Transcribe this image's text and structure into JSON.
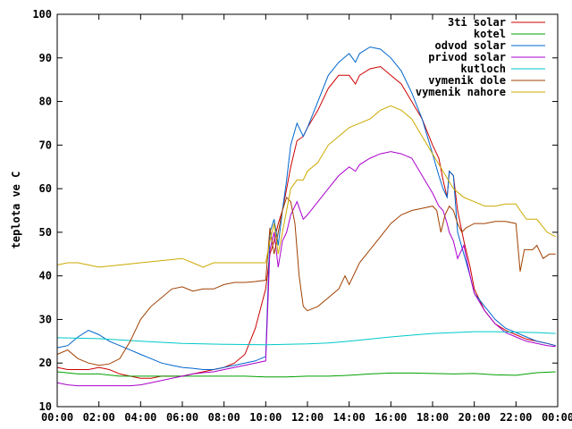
{
  "chart_data": {
    "type": "line",
    "title": "",
    "xlabel": "",
    "ylabel": "teplota ve C",
    "ylim": [
      10,
      100
    ],
    "xlim": [
      0,
      24
    ],
    "yticks": [
      10,
      20,
      30,
      40,
      50,
      60,
      70,
      80,
      90,
      100
    ],
    "xticks": [
      {
        "v": 0,
        "label": "00:00"
      },
      {
        "v": 2,
        "label": "02:00"
      },
      {
        "v": 4,
        "label": "04:00"
      },
      {
        "v": 6,
        "label": "06:00"
      },
      {
        "v": 8,
        "label": "08:00"
      },
      {
        "v": 10,
        "label": "10:00"
      },
      {
        "v": 12,
        "label": "12:00"
      },
      {
        "v": 14,
        "label": "14:00"
      },
      {
        "v": 16,
        "label": "16:00"
      },
      {
        "v": 18,
        "label": "18:00"
      },
      {
        "v": 20,
        "label": "20:00"
      },
      {
        "v": 22,
        "label": "22:00"
      },
      {
        "v": 24,
        "label": "00:00"
      }
    ],
    "legend_position": "top-right",
    "series": [
      {
        "name": "3ti solar",
        "color": "#cc0000",
        "x": [
          0,
          0.5,
          1,
          1.5,
          2,
          2.5,
          3,
          3.5,
          4,
          4.5,
          5,
          5.5,
          6,
          6.5,
          7,
          7.5,
          8,
          8.5,
          9,
          9.5,
          10,
          10.2,
          10.4,
          10.6,
          10.8,
          11,
          11.2,
          11.5,
          11.8,
          12,
          12.5,
          13,
          13.5,
          14,
          14.3,
          14.5,
          15,
          15.5,
          16,
          16.5,
          17,
          17.5,
          18,
          18.3,
          18.5,
          18.7,
          18.8,
          19,
          19.2,
          19.5,
          19.8,
          20,
          20.5,
          21,
          21.5,
          22,
          22.5,
          23,
          23.5,
          23.9
        ],
        "values": [
          19,
          18.5,
          18.5,
          18.5,
          19,
          18.5,
          17.5,
          17,
          16.5,
          16.5,
          17,
          17,
          17,
          17.5,
          18,
          18.5,
          19,
          20,
          22,
          28,
          37,
          45,
          48,
          52,
          55,
          60,
          65,
          71,
          72,
          74,
          78,
          83,
          86,
          86,
          84,
          86,
          87.5,
          88,
          86,
          84,
          80,
          76,
          70,
          67,
          62,
          58,
          64,
          63,
          55,
          48,
          42,
          37,
          32,
          29,
          27.5,
          26.5,
          25.5,
          25,
          24.5,
          24
        ]
      },
      {
        "name": "kotel",
        "color": "#00a000",
        "x": [
          0,
          1,
          2,
          3,
          4,
          5,
          6,
          7,
          8,
          9,
          10,
          11,
          12,
          13,
          14,
          15,
          16,
          17,
          18,
          19,
          20,
          21,
          22,
          23,
          23.9
        ],
        "values": [
          18,
          17.5,
          17.5,
          17,
          17,
          17,
          17,
          17,
          17,
          17,
          16.8,
          16.8,
          17,
          17,
          17.2,
          17.5,
          17.7,
          17.7,
          17.6,
          17.5,
          17.6,
          17.3,
          17.2,
          17.8,
          18
        ]
      },
      {
        "name": "odvod solar",
        "color": "#0066cc",
        "x": [
          0,
          0.5,
          1,
          1.5,
          2,
          2.5,
          3,
          3.5,
          4,
          4.5,
          5,
          5.5,
          6,
          6.5,
          7,
          7.5,
          8,
          8.5,
          9,
          9.5,
          10,
          10.2,
          10.4,
          10.6,
          10.8,
          11,
          11.2,
          11.5,
          11.8,
          12,
          12.5,
          13,
          13.5,
          14,
          14.3,
          14.5,
          15,
          15.5,
          16,
          16.5,
          17,
          17.5,
          18,
          18.3,
          18.5,
          18.7,
          18.8,
          19,
          19.2,
          19.5,
          19.8,
          20,
          20.5,
          21,
          21.5,
          22,
          22.5,
          23,
          23.5,
          23.9
        ],
        "values": [
          23.5,
          24,
          26,
          27.5,
          26.5,
          25,
          24,
          23,
          22,
          21,
          20,
          19.5,
          19,
          18.8,
          18.5,
          18.5,
          19,
          19.5,
          20,
          20.5,
          21.5,
          50,
          53,
          47,
          55,
          62,
          70,
          75,
          72,
          74,
          80,
          86,
          89,
          91,
          89,
          91,
          92.5,
          92,
          90,
          87,
          82,
          76,
          68,
          63,
          60,
          58,
          64,
          63,
          50,
          45,
          40,
          36,
          33,
          30,
          28,
          27,
          26,
          25,
          24.5,
          24
        ]
      },
      {
        "name": "privod solar",
        "color": "#aa00cc",
        "x": [
          0,
          0.5,
          1,
          1.5,
          2,
          2.5,
          3,
          3.5,
          4,
          4.5,
          5,
          5.5,
          6,
          6.5,
          7,
          7.5,
          8,
          8.5,
          9,
          9.5,
          10,
          10.2,
          10.4,
          10.6,
          10.8,
          11,
          11.2,
          11.5,
          11.8,
          12,
          12.5,
          13,
          13.5,
          14,
          14.3,
          14.5,
          15,
          15.5,
          16,
          16.5,
          17,
          17.5,
          18,
          18.3,
          18.5,
          18.7,
          18.8,
          19,
          19.2,
          19.5,
          19.8,
          20,
          20.5,
          21,
          21.5,
          22,
          22.5,
          23,
          23.5,
          23.9
        ],
        "values": [
          15.5,
          15,
          14.8,
          14.8,
          14.8,
          14.8,
          14.8,
          14.8,
          15,
          15.5,
          16,
          16.5,
          17,
          17.5,
          17.8,
          18,
          18.5,
          19,
          19.5,
          20,
          20.5,
          46,
          50,
          42,
          48,
          50,
          54,
          57,
          53,
          54,
          57,
          60,
          63,
          65,
          64,
          65.5,
          67,
          68,
          68.5,
          68,
          67,
          63,
          59,
          56,
          55,
          52,
          50,
          48,
          44,
          47,
          40,
          36,
          32,
          29,
          27,
          26,
          25,
          24.5,
          24,
          23.8
        ]
      },
      {
        "name": "kutloch",
        "color": "#00c8c8",
        "x": [
          0,
          2,
          4,
          6,
          8,
          10,
          11,
          12,
          13,
          14,
          15,
          16,
          17,
          18,
          19,
          20,
          21,
          22,
          23,
          23.9
        ],
        "values": [
          25.8,
          25.6,
          25,
          24.5,
          24.3,
          24.2,
          24.3,
          24.4,
          24.6,
          25,
          25.5,
          26,
          26.4,
          26.8,
          27,
          27.2,
          27.2,
          27.1,
          27,
          26.8
        ]
      },
      {
        "name": "vymenik dole",
        "color": "#a04000",
        "x": [
          0,
          0.5,
          1,
          1.5,
          2,
          2.5,
          3,
          3.5,
          4,
          4.5,
          5,
          5.5,
          6,
          6.5,
          7,
          7.5,
          8,
          8.5,
          9,
          9.5,
          10,
          10.2,
          10.4,
          10.6,
          10.8,
          11,
          11.2,
          11.4,
          11.6,
          11.8,
          12,
          12.5,
          13,
          13.5,
          13.8,
          14,
          14.5,
          15,
          15.5,
          16,
          16.5,
          17,
          17.5,
          18,
          18.2,
          18.4,
          18.6,
          18.8,
          19,
          19.2,
          19.4,
          19.6,
          20,
          20.5,
          21,
          21.5,
          22,
          22.2,
          22.4,
          22.8,
          23,
          23.3,
          23.6,
          23.9
        ],
        "values": [
          22,
          23,
          21,
          20,
          19.5,
          19.8,
          21,
          25,
          30,
          33,
          35,
          37,
          37.5,
          36.5,
          37,
          37,
          38,
          38.5,
          38.5,
          38.7,
          39,
          51,
          45,
          50,
          55,
          58,
          57,
          52,
          40,
          33,
          32,
          33,
          35,
          37,
          40,
          38,
          43,
          46,
          49,
          52,
          54,
          55,
          55.5,
          56,
          55,
          50,
          54,
          56,
          55,
          52,
          50,
          51,
          52,
          52,
          52.5,
          52.5,
          52,
          41,
          46,
          46,
          47,
          44,
          45,
          45
        ]
      },
      {
        "name": "vymenik nahore",
        "color": "#ccaa00",
        "x": [
          0,
          0.5,
          1,
          1.5,
          2,
          3,
          4,
          5,
          6,
          6.5,
          7,
          7.5,
          8,
          9,
          10,
          10.2,
          10.4,
          10.6,
          10.8,
          11,
          11.2,
          11.5,
          11.8,
          12,
          12.5,
          13,
          13.5,
          14,
          14.5,
          15,
          15.5,
          16,
          16.5,
          17,
          17.5,
          18,
          18.5,
          19,
          19.5,
          20,
          20.5,
          21,
          21.5,
          22,
          22.2,
          22.5,
          23,
          23.5,
          23.9
        ],
        "values": [
          42.5,
          43,
          43,
          42.5,
          42,
          42.5,
          43,
          43.5,
          44,
          43,
          42,
          43,
          43,
          43,
          43,
          48,
          52,
          45,
          50,
          55,
          60,
          62,
          62,
          64,
          66,
          70,
          72,
          74,
          75,
          76,
          78,
          79,
          78,
          76,
          72,
          68,
          64,
          60,
          58,
          57,
          56,
          56,
          56.5,
          56.5,
          55,
          53,
          53,
          50,
          49
        ]
      }
    ]
  }
}
